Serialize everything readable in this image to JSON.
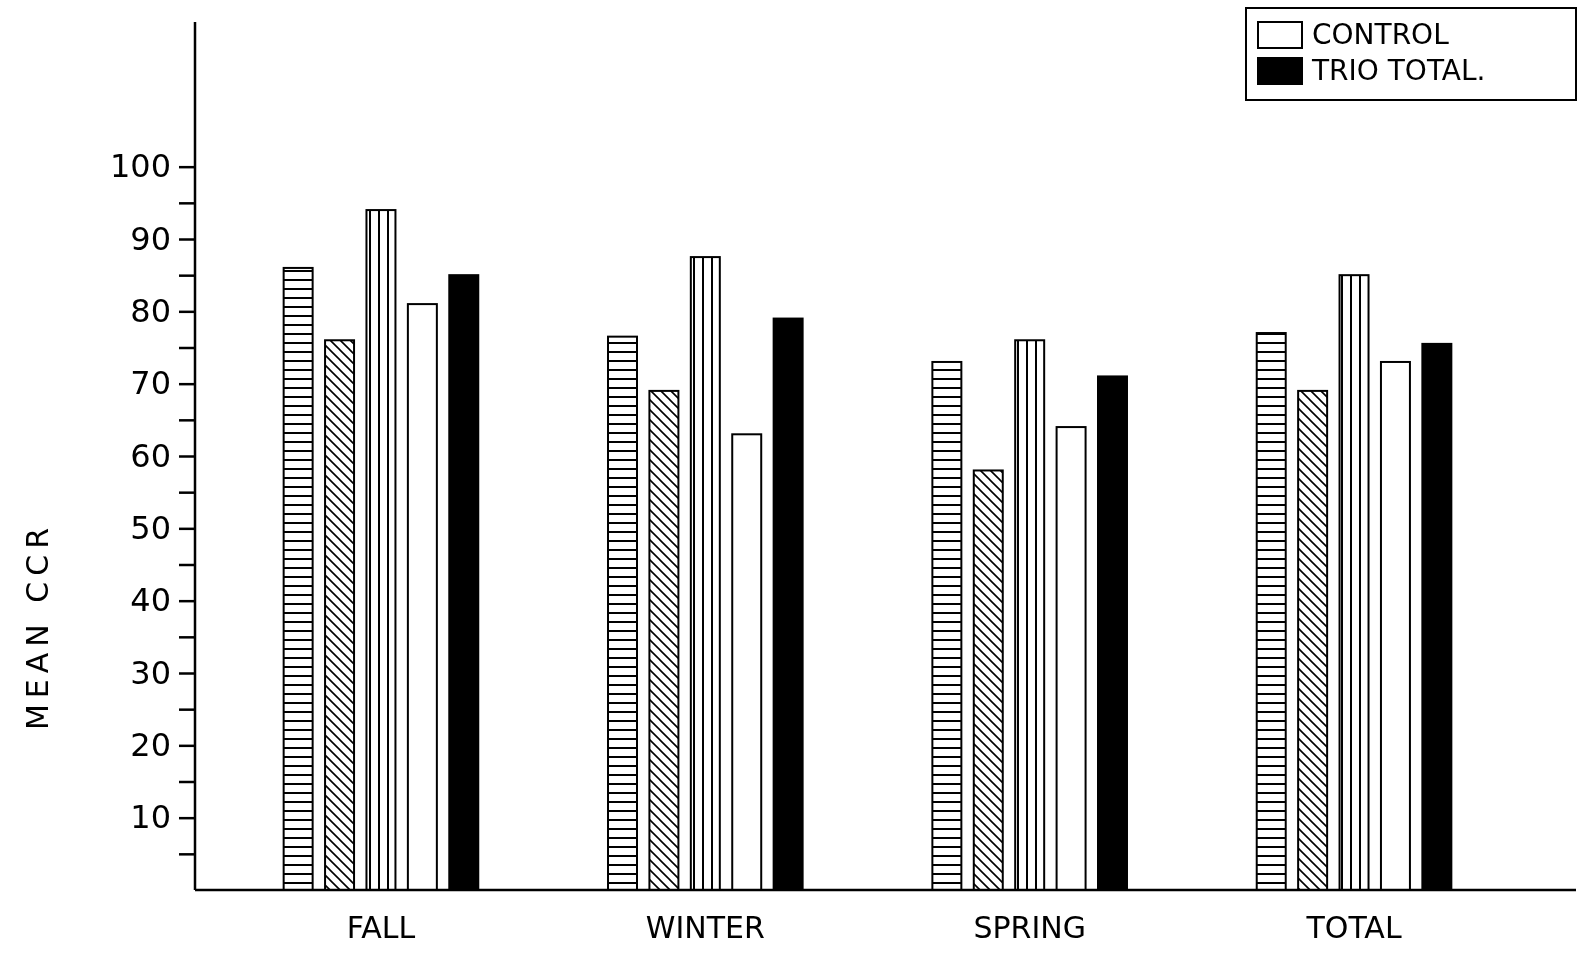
{
  "chart_data": {
    "type": "bar",
    "ylabel": "MEAN CCR",
    "categories": [
      "FALL",
      "WINTER",
      "SPRING",
      "TOTAL"
    ],
    "series": [
      {
        "color": "#000000",
        "values": [
          86,
          76.5,
          73,
          77
        ]
      },
      {
        "color": "#000000",
        "values": [
          76,
          69,
          58,
          69
        ]
      },
      {
        "color": "#000000",
        "values": [
          94,
          87.5,
          76,
          85
        ]
      },
      {
        "name": "CONTROL",
        "color": "#ffffff",
        "values": [
          81,
          63,
          64,
          73
        ]
      },
      {
        "name": "TRIO TOTAL.",
        "color": "#000000",
        "values": [
          85,
          79,
          71,
          75.5
        ]
      }
    ],
    "ylim": [
      0,
      120
    ],
    "yticks": [
      {
        "value": 5,
        "label": null
      },
      10,
      {
        "value": 15,
        "label": null
      },
      20,
      {
        "value": 25,
        "label": null
      },
      30,
      {
        "value": 35,
        "label": null
      },
      40,
      {
        "value": 45,
        "label": null
      },
      50,
      {
        "value": 55,
        "label": null
      },
      60,
      {
        "value": 65,
        "label": null
      },
      70,
      {
        "value": 75,
        "label": null
      },
      80,
      {
        "value": 85,
        "label": null
      },
      90,
      {
        "value": 95,
        "label": null
      },
      100
    ],
    "grid": false,
    "legend": "top right"
  }
}
